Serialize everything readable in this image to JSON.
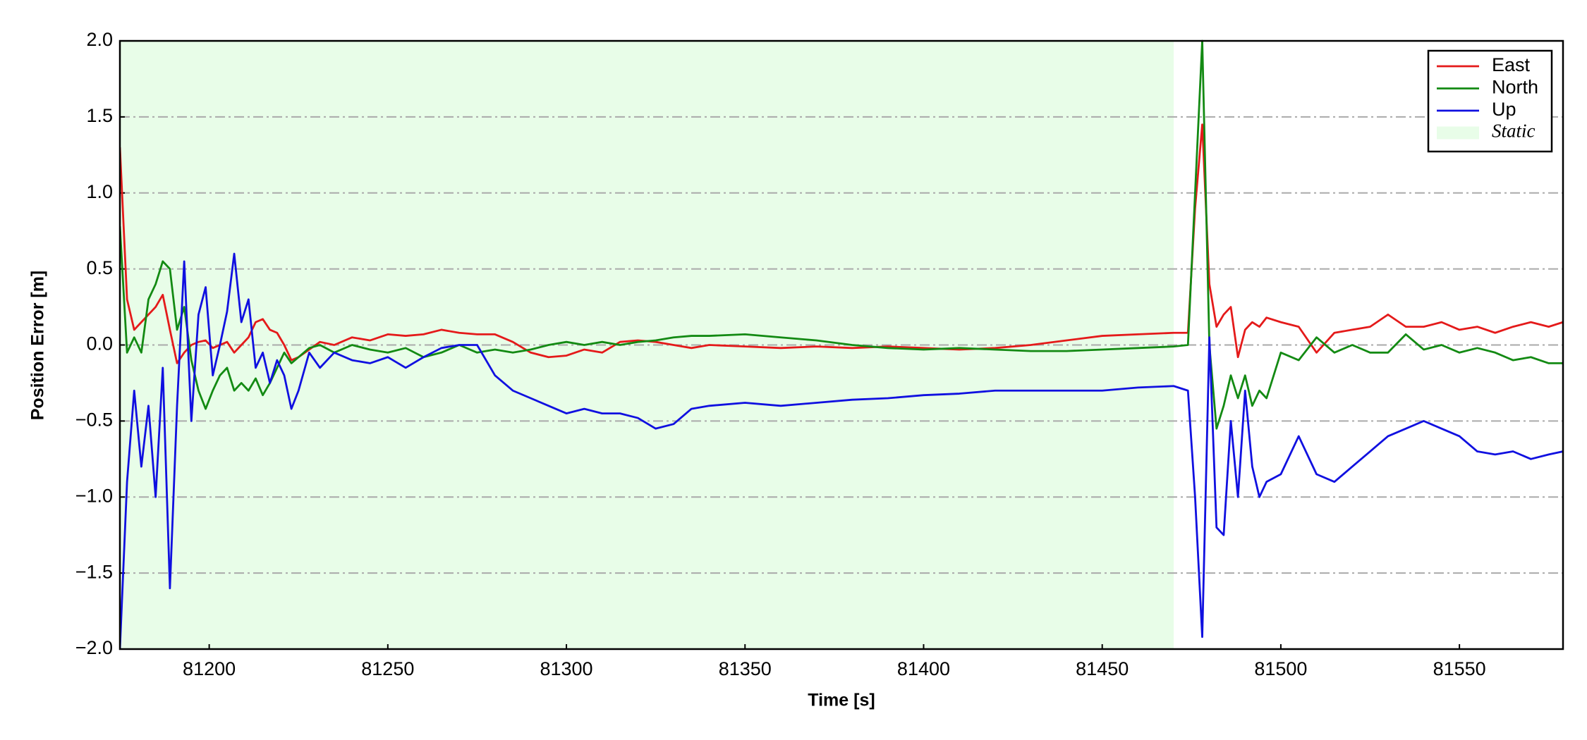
{
  "chart_data": {
    "type": "line",
    "x_label": "Time [s]",
    "y_label": "Position Error [m]",
    "xlim": [
      81175,
      81579
    ],
    "ylim": [
      -2,
      2
    ],
    "xticks": [
      81200,
      81250,
      81300,
      81350,
      81400,
      81450,
      81500,
      81550
    ],
    "yticks": [
      {
        "value": -2,
        "label": "−2.0"
      },
      {
        "value": -1.5,
        "label": "−1.5"
      },
      {
        "value": -1,
        "label": "−1.0"
      },
      {
        "value": -0.5,
        "label": "−0.5"
      },
      {
        "value": 0,
        "label": "0.0"
      },
      0.5,
      {
        "value": 1,
        "label": "1.0"
      },
      1.5,
      {
        "value": 2,
        "label": "2.0"
      }
    ],
    "grid": true,
    "legend": "upper right",
    "span": {
      "name": "Static",
      "color": "#e8fde8",
      "x": [
        81175,
        81470
      ]
    },
    "x": [
      81175,
      81177,
      81179,
      81181,
      81183,
      81185,
      81187,
      81189,
      81191,
      81193,
      81195,
      81197,
      81199,
      81201,
      81203,
      81205,
      81207,
      81209,
      81211,
      81213,
      81215,
      81217,
      81219,
      81221,
      81223,
      81225,
      81228,
      81231,
      81235,
      81240,
      81245,
      81250,
      81255,
      81260,
      81265,
      81270,
      81275,
      81280,
      81285,
      81290,
      81295,
      81300,
      81305,
      81310,
      81315,
      81320,
      81325,
      81330,
      81335,
      81340,
      81350,
      81360,
      81370,
      81380,
      81390,
      81400,
      81410,
      81420,
      81430,
      81440,
      81450,
      81460,
      81470,
      81474,
      81476,
      81478,
      81480,
      81482,
      81484,
      81486,
      81488,
      81490,
      81492,
      81494,
      81496,
      81500,
      81505,
      81510,
      81515,
      81520,
      81525,
      81530,
      81535,
      81540,
      81545,
      81550,
      81555,
      81560,
      81565,
      81570,
      81575,
      81579
    ],
    "series": [
      {
        "name": "East",
        "color": "#e41a1a",
        "values": [
          1.3,
          0.3,
          0.1,
          0.15,
          0.2,
          0.25,
          0.33,
          0.1,
          -0.12,
          -0.05,
          0.0,
          0.02,
          0.03,
          -0.02,
          0.0,
          0.02,
          -0.05,
          0.0,
          0.05,
          0.15,
          0.17,
          0.1,
          0.08,
          0.0,
          -0.1,
          -0.08,
          -0.03,
          0.02,
          0.0,
          0.05,
          0.03,
          0.07,
          0.06,
          0.07,
          0.1,
          0.08,
          0.07,
          0.07,
          0.02,
          -0.05,
          -0.08,
          -0.07,
          -0.03,
          -0.05,
          0.02,
          0.03,
          0.02,
          0.0,
          -0.02,
          0.0,
          -0.01,
          -0.02,
          -0.01,
          -0.02,
          -0.01,
          -0.02,
          -0.03,
          -0.02,
          0.0,
          0.03,
          0.06,
          0.07,
          0.08,
          0.08,
          0.9,
          1.45,
          0.4,
          0.12,
          0.2,
          0.25,
          -0.08,
          0.1,
          0.15,
          0.12,
          0.18,
          0.15,
          0.12,
          -0.05,
          0.08,
          0.1,
          0.12,
          0.2,
          0.12,
          0.12,
          0.15,
          0.1,
          0.12,
          0.08,
          0.12,
          0.15,
          0.12,
          0.15
        ]
      },
      {
        "name": "North",
        "color": "#138a13",
        "values": [
          0.78,
          -0.05,
          0.05,
          -0.05,
          0.3,
          0.4,
          0.55,
          0.5,
          0.1,
          0.25,
          -0.1,
          -0.3,
          -0.42,
          -0.3,
          -0.2,
          -0.15,
          -0.3,
          -0.25,
          -0.3,
          -0.22,
          -0.33,
          -0.25,
          -0.15,
          -0.05,
          -0.12,
          -0.08,
          -0.02,
          0.0,
          -0.05,
          0.0,
          -0.03,
          -0.05,
          -0.02,
          -0.08,
          -0.05,
          0.0,
          -0.05,
          -0.03,
          -0.05,
          -0.03,
          0.0,
          0.02,
          0.0,
          0.02,
          0.0,
          0.02,
          0.03,
          0.05,
          0.06,
          0.06,
          0.07,
          0.05,
          0.03,
          0.0,
          -0.02,
          -0.03,
          -0.02,
          -0.03,
          -0.04,
          -0.04,
          -0.03,
          -0.02,
          -0.01,
          0.0,
          1.0,
          2.0,
          0.0,
          -0.55,
          -0.4,
          -0.2,
          -0.35,
          -0.2,
          -0.4,
          -0.3,
          -0.35,
          -0.05,
          -0.1,
          0.05,
          -0.05,
          0.0,
          -0.05,
          -0.05,
          0.07,
          -0.03,
          0.0,
          -0.05,
          -0.02,
          -0.05,
          -0.1,
          -0.08,
          -0.12,
          -0.12
        ]
      },
      {
        "name": "Up",
        "color": "#1010e0",
        "values": [
          -2.0,
          -0.9,
          -0.3,
          -0.8,
          -0.4,
          -1.0,
          -0.15,
          -1.6,
          -0.4,
          0.55,
          -0.5,
          0.2,
          0.38,
          -0.2,
          0.0,
          0.22,
          0.6,
          0.15,
          0.3,
          -0.15,
          -0.05,
          -0.25,
          -0.1,
          -0.2,
          -0.42,
          -0.3,
          -0.05,
          -0.15,
          -0.05,
          -0.1,
          -0.12,
          -0.08,
          -0.15,
          -0.08,
          -0.02,
          0.0,
          0.0,
          -0.2,
          -0.3,
          -0.35,
          -0.4,
          -0.45,
          -0.42,
          -0.45,
          -0.45,
          -0.48,
          -0.55,
          -0.52,
          -0.42,
          -0.4,
          -0.38,
          -0.4,
          -0.38,
          -0.36,
          -0.35,
          -0.33,
          -0.32,
          -0.3,
          -0.3,
          -0.3,
          -0.3,
          -0.28,
          -0.27,
          -0.3,
          -1.0,
          -1.92,
          0.05,
          -1.2,
          -1.25,
          -0.5,
          -1.0,
          -0.3,
          -0.8,
          -1.0,
          -0.9,
          -0.85,
          -0.6,
          -0.85,
          -0.9,
          -0.8,
          -0.7,
          -0.6,
          -0.55,
          -0.5,
          -0.55,
          -0.6,
          -0.7,
          -0.72,
          -0.7,
          -0.75,
          -0.72,
          -0.7
        ]
      }
    ]
  }
}
